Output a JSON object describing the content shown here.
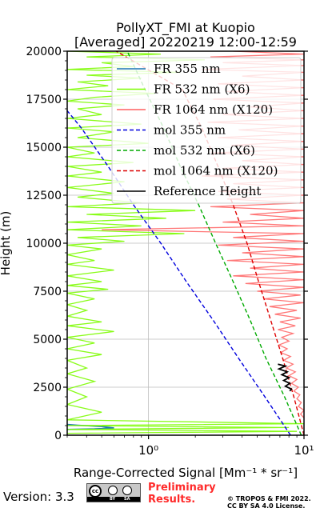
{
  "chart_data": {
    "type": "line",
    "title": "PollyXT_FMI at Kuopio",
    "subtitle": "[Averaged] 20220219 12:00-12:59",
    "xlabel": "Range-Corrected Signal [Mm⁻¹ * sr⁻¹]",
    "ylabel": "Height (m)",
    "xscale": "log",
    "xlim": [
      0.3,
      10
    ],
    "ylim": [
      0,
      20000
    ],
    "x_ticks": [
      {
        "v": 1,
        "label": "10⁰"
      },
      {
        "v": 10,
        "label": "10¹"
      }
    ],
    "y_ticks": [
      0,
      2500,
      5000,
      7500,
      10000,
      12500,
      15000,
      17500,
      20000
    ],
    "y_tick_labels": [
      "0",
      "2500",
      "5000",
      "7500",
      "10000",
      "12500",
      "15000",
      "17500",
      "20000"
    ],
    "grid": true,
    "legend_position": "top-right",
    "series": [
      {
        "name": "FR 355 nm",
        "color": "#1f77b4",
        "style": "solid",
        "points": [
          [
            0.3,
            300
          ],
          [
            0.45,
            330
          ],
          [
            0.6,
            380
          ],
          [
            0.5,
            450
          ],
          [
            0.35,
            520
          ],
          [
            0.3,
            560
          ]
        ]
      },
      {
        "name": "FR 532 nm (X6)",
        "color": "#7cfc00",
        "style": "solid",
        "points": [
          [
            0.3,
            20000
          ],
          [
            1.2,
            19850
          ],
          [
            0.4,
            19700
          ],
          [
            2.3,
            19550
          ],
          [
            0.5,
            19400
          ],
          [
            0.8,
            19200
          ],
          [
            0.3,
            19050
          ],
          [
            1.6,
            18900
          ],
          [
            0.4,
            18750
          ],
          [
            0.9,
            18600
          ],
          [
            0.35,
            18400
          ],
          [
            0.55,
            18200
          ],
          [
            0.3,
            18000
          ],
          [
            1.1,
            17800
          ],
          [
            0.45,
            17600
          ],
          [
            0.3,
            17400
          ],
          [
            0.7,
            17200
          ],
          [
            0.35,
            17000
          ],
          [
            0.5,
            16700
          ],
          [
            0.3,
            16500
          ],
          [
            0.9,
            16200
          ],
          [
            0.3,
            16000
          ],
          [
            0.6,
            15800
          ],
          [
            0.35,
            15500
          ],
          [
            1.0,
            15200
          ],
          [
            0.3,
            15000
          ],
          [
            0.45,
            14700
          ],
          [
            0.3,
            14500
          ],
          [
            0.8,
            14200
          ],
          [
            0.3,
            14000
          ],
          [
            0.5,
            13700
          ],
          [
            0.3,
            13500
          ],
          [
            0.7,
            13200
          ],
          [
            0.3,
            12900
          ],
          [
            0.6,
            12600
          ],
          [
            0.35,
            12400
          ],
          [
            0.9,
            12100
          ],
          [
            0.3,
            11900
          ],
          [
            2.0,
            11700
          ],
          [
            0.4,
            11500
          ],
          [
            1.3,
            11300
          ],
          [
            0.3,
            11100
          ],
          [
            0.9,
            10900
          ],
          [
            0.3,
            10700
          ],
          [
            1.7,
            10500
          ],
          [
            0.35,
            10300
          ],
          [
            0.7,
            10100
          ],
          [
            0.3,
            9900
          ],
          [
            0.5,
            9700
          ],
          [
            0.3,
            9400
          ],
          [
            0.45,
            9100
          ],
          [
            0.3,
            8900
          ],
          [
            0.6,
            8600
          ],
          [
            0.3,
            8300
          ],
          [
            0.5,
            8000
          ],
          [
            0.3,
            7800
          ],
          [
            0.55,
            7600
          ],
          [
            0.3,
            7400
          ],
          [
            0.45,
            7100
          ],
          [
            0.3,
            6800
          ],
          [
            0.4,
            6500
          ],
          [
            0.3,
            6200
          ],
          [
            0.5,
            5900
          ],
          [
            0.3,
            5700
          ],
          [
            0.6,
            5400
          ],
          [
            0.3,
            5100
          ],
          [
            0.45,
            4800
          ],
          [
            0.3,
            4500
          ],
          [
            0.5,
            4200
          ],
          [
            0.3,
            3900
          ],
          [
            0.4,
            3500
          ],
          [
            0.3,
            3200
          ],
          [
            0.45,
            2800
          ],
          [
            0.3,
            2400
          ],
          [
            0.4,
            2000
          ],
          [
            0.3,
            1600
          ],
          [
            0.5,
            1200
          ],
          [
            0.3,
            800
          ],
          [
            10,
            600
          ],
          [
            0.3,
            500
          ],
          [
            8,
            400
          ],
          [
            0.3,
            300
          ],
          [
            9,
            200
          ],
          [
            0.3,
            100
          ]
        ]
      },
      {
        "name": "FR 1064 nm (X120)",
        "color": "#ff6060",
        "style": "solid",
        "points": [
          [
            3.5,
            20000
          ],
          [
            10,
            19850
          ],
          [
            2.5,
            19700
          ],
          [
            10,
            19550
          ],
          [
            3.0,
            19400
          ],
          [
            10,
            19250
          ],
          [
            2.2,
            19050
          ],
          [
            10,
            18900
          ],
          [
            4.0,
            18700
          ],
          [
            10,
            18500
          ],
          [
            2.8,
            18300
          ],
          [
            10,
            18100
          ],
          [
            3.2,
            17900
          ],
          [
            10,
            17700
          ],
          [
            2.6,
            17500
          ],
          [
            10,
            17300
          ],
          [
            4.5,
            17100
          ],
          [
            10,
            16900
          ],
          [
            3.0,
            16700
          ],
          [
            10,
            16500
          ],
          [
            2.4,
            16300
          ],
          [
            10,
            16100
          ],
          [
            3.8,
            15900
          ],
          [
            10,
            15700
          ],
          [
            2.8,
            15500
          ],
          [
            10,
            15300
          ],
          [
            3.4,
            15100
          ],
          [
            10,
            14900
          ],
          [
            2.6,
            14700
          ],
          [
            10,
            14500
          ],
          [
            4.0,
            14300
          ],
          [
            10,
            14100
          ],
          [
            3.0,
            13900
          ],
          [
            10,
            13700
          ],
          [
            2.2,
            13500
          ],
          [
            10,
            13300
          ],
          [
            3.5,
            13100
          ],
          [
            10,
            12900
          ],
          [
            2.8,
            12700
          ],
          [
            10,
            12500
          ],
          [
            3.2,
            12300
          ],
          [
            10,
            12100
          ],
          [
            2.5,
            11900
          ],
          [
            10,
            11700
          ],
          [
            4.5,
            11500
          ],
          [
            10,
            11300
          ],
          [
            3.0,
            11100
          ],
          [
            10,
            10900
          ],
          [
            0.5,
            10700
          ],
          [
            10,
            10500
          ],
          [
            3.5,
            10300
          ],
          [
            10,
            10100
          ],
          [
            2.8,
            9900
          ],
          [
            10,
            9700
          ],
          [
            4.0,
            9500
          ],
          [
            10,
            9300
          ],
          [
            3.2,
            9100
          ],
          [
            10,
            8900
          ],
          [
            4.5,
            8700
          ],
          [
            10,
            8500
          ],
          [
            3.5,
            8300
          ],
          [
            10,
            8100
          ],
          [
            4.2,
            7900
          ],
          [
            10,
            7700
          ],
          [
            5.0,
            7500
          ],
          [
            9.5,
            7300
          ],
          [
            5.5,
            7100
          ],
          [
            10,
            6900
          ],
          [
            6.0,
            6700
          ],
          [
            9.0,
            6500
          ],
          [
            6.5,
            6300
          ],
          [
            9.5,
            6100
          ],
          [
            7.0,
            5900
          ],
          [
            8.8,
            5700
          ],
          [
            6.8,
            5500
          ],
          [
            8.5,
            5300
          ],
          [
            7.2,
            5100
          ],
          [
            8.0,
            4900
          ],
          [
            6.9,
            4700
          ],
          [
            7.8,
            4500
          ],
          [
            7.1,
            4300
          ],
          [
            8.2,
            4100
          ],
          [
            7.4,
            3900
          ],
          [
            8.5,
            3700
          ],
          [
            7.7,
            3500
          ],
          [
            8.8,
            3300
          ],
          [
            8.0,
            3100
          ],
          [
            9.0,
            2900
          ],
          [
            8.3,
            2700
          ],
          [
            9.2,
            2500
          ],
          [
            8.6,
            2300
          ],
          [
            9.4,
            2100
          ],
          [
            9.0,
            1900
          ],
          [
            9.6,
            1700
          ],
          [
            9.2,
            1500
          ],
          [
            10,
            1300
          ],
          [
            9.5,
            1100
          ],
          [
            10,
            900
          ]
        ]
      },
      {
        "name": "mol 355 nm",
        "color": "#0000dd",
        "style": "dashed",
        "points": [
          [
            8.2,
            0
          ],
          [
            5.6,
            2000
          ],
          [
            3.8,
            4000
          ],
          [
            2.6,
            6000
          ],
          [
            1.75,
            8000
          ],
          [
            1.2,
            10000
          ],
          [
            0.8,
            12000
          ],
          [
            0.55,
            14000
          ],
          [
            0.37,
            16000
          ],
          [
            0.3,
            16900
          ]
        ]
      },
      {
        "name": "mol 532 nm (X6)",
        "color": "#00aa00",
        "style": "dashed",
        "points": [
          [
            9.6,
            0
          ],
          [
            7.5,
            2000
          ],
          [
            5.7,
            4000
          ],
          [
            4.5,
            6000
          ],
          [
            3.5,
            8000
          ],
          [
            2.7,
            10000
          ],
          [
            2.1,
            12000
          ],
          [
            1.6,
            14000
          ],
          [
            1.25,
            16000
          ],
          [
            0.95,
            18000
          ],
          [
            0.73,
            20000
          ]
        ]
      },
      {
        "name": "mol 1064 nm (X120)",
        "color": "#dd0000",
        "style": "dashed",
        "points": [
          [
            10,
            0
          ],
          [
            8.6,
            2000
          ],
          [
            7.3,
            4000
          ],
          [
            6.1,
            6000
          ],
          [
            5.1,
            8000
          ],
          [
            4.3,
            10000
          ],
          [
            3.5,
            12000
          ],
          [
            2.8,
            14000
          ],
          [
            2.2,
            16000
          ],
          [
            1.65,
            18000
          ],
          [
            0.62,
            20000
          ]
        ]
      },
      {
        "name": "Reference Height",
        "color": "#000000",
        "style": "solid",
        "points": [
          [
            6.8,
            3700
          ],
          [
            7.6,
            3600
          ],
          [
            6.9,
            3450
          ],
          [
            7.8,
            3300
          ],
          [
            7.2,
            3150
          ],
          [
            8.0,
            3000
          ],
          [
            7.4,
            2850
          ],
          [
            8.1,
            2700
          ],
          [
            7.6,
            2550
          ],
          [
            8.3,
            2400
          ],
          [
            8.1,
            2300
          ]
        ]
      }
    ]
  },
  "footer": {
    "version": "Version: 3.3",
    "cc_by": "BY",
    "cc_sa": "SA",
    "prelim_line1": "Preliminary",
    "prelim_line2": "Results.",
    "copyright_line1": "© TROPOS & FMI 2022.",
    "copyright_line2": "CC BY SA 4.0 License."
  }
}
